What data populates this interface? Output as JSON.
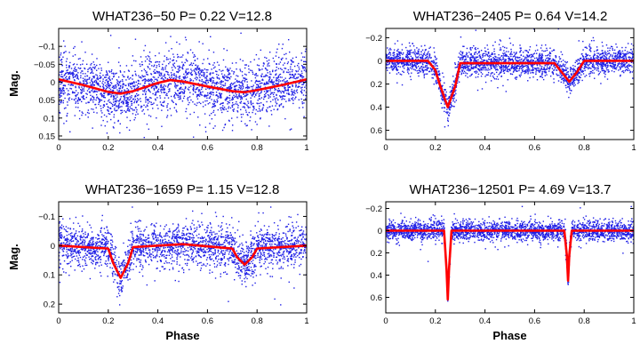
{
  "colors": {
    "points": "#1f1fe6",
    "model": "#ff0000",
    "axes": "#000000",
    "background": "#ffffff"
  },
  "chart_data": [
    {
      "type": "scatter",
      "title": "WHAT236−50     P= 0.22 V=12.8",
      "xlabel": "",
      "ylabel": "Mag.",
      "xlim": [
        0,
        1
      ],
      "ylim": [
        -0.15,
        0.16
      ],
      "y_inverted": true,
      "xticks": [
        0,
        0.2,
        0.4,
        0.6,
        0.8,
        1
      ],
      "xtick_labels": [
        "0",
        "0.2",
        "0.4",
        "0.6",
        "0.8",
        "1"
      ],
      "yticks": [
        -0.1,
        -0.05,
        0,
        0.05,
        0.1,
        0.15
      ],
      "ytick_labels": [
        "−0.1",
        "−0.05",
        "0",
        "0.05",
        "0.1",
        "0.15"
      ],
      "series": [
        {
          "kind": "points",
          "points_approx": 2500,
          "scatter_std": 0.04
        },
        {
          "kind": "model_line",
          "x": [
            0,
            0.1,
            0.2,
            0.25,
            0.3,
            0.4,
            0.45,
            0.5,
            0.6,
            0.7,
            0.75,
            0.8,
            0.9,
            1.0
          ],
          "y": [
            -0.008,
            0.008,
            0.027,
            0.032,
            0.025,
            0.002,
            -0.006,
            -0.002,
            0.012,
            0.025,
            0.028,
            0.022,
            0.008,
            -0.008
          ]
        }
      ]
    },
    {
      "type": "scatter",
      "title": "WHAT236−2405  P= 0.64 V=14.2",
      "xlabel": "",
      "ylabel": "",
      "xlim": [
        0,
        1
      ],
      "ylim": [
        -0.28,
        0.68
      ],
      "y_inverted": true,
      "xticks": [
        0,
        0.2,
        0.4,
        0.6,
        0.8,
        1
      ],
      "xtick_labels": [
        "0",
        "0.2",
        "0.4",
        "0.6",
        "0.8",
        "1"
      ],
      "yticks": [
        -0.2,
        0,
        0.2,
        0.4,
        0.6
      ],
      "ytick_labels": [
        "−0.2",
        "0",
        "0.2",
        "0.4",
        "0.6"
      ],
      "series": [
        {
          "kind": "points",
          "points_approx": 2500,
          "scatter_std": 0.06
        },
        {
          "kind": "model_line",
          "x": [
            0,
            0.17,
            0.2,
            0.22,
            0.25,
            0.28,
            0.3,
            0.55,
            0.68,
            0.71,
            0.74,
            0.77,
            0.8,
            1.0
          ],
          "y": [
            0,
            0,
            0.08,
            0.22,
            0.4,
            0.22,
            0.02,
            0.02,
            0.02,
            0.1,
            0.18,
            0.1,
            0,
            0
          ]
        }
      ]
    },
    {
      "type": "scatter",
      "title": "WHAT236−1659  P= 1.15 V=12.8",
      "xlabel": "Phase",
      "ylabel": "Mag.",
      "xlim": [
        0,
        1
      ],
      "ylim": [
        -0.15,
        0.23
      ],
      "y_inverted": true,
      "xticks": [
        0,
        0.2,
        0.4,
        0.6,
        0.8,
        1
      ],
      "xtick_labels": [
        "0",
        "0.2",
        "0.4",
        "0.6",
        "0.8",
        "1"
      ],
      "yticks": [
        -0.1,
        0,
        0.1,
        0.2
      ],
      "ytick_labels": [
        "−0.1",
        "0",
        "0.1",
        "0.2"
      ],
      "series": [
        {
          "kind": "points",
          "points_approx": 2500,
          "scatter_std": 0.035
        },
        {
          "kind": "model_line",
          "x": [
            0,
            0.2,
            0.22,
            0.25,
            0.28,
            0.3,
            0.5,
            0.7,
            0.72,
            0.75,
            0.78,
            0.8,
            1.0
          ],
          "y": [
            0,
            0.01,
            0.06,
            0.11,
            0.06,
            0.005,
            -0.005,
            0.01,
            0.04,
            0.065,
            0.04,
            0.01,
            0
          ]
        }
      ]
    },
    {
      "type": "scatter",
      "title": "WHAT236−12501 P= 4.69 V=13.7",
      "xlabel": "Phase",
      "ylabel": "",
      "xlim": [
        0,
        1
      ],
      "ylim": [
        -0.26,
        0.74
      ],
      "y_inverted": true,
      "xticks": [
        0,
        0.2,
        0.4,
        0.6,
        0.8,
        1
      ],
      "xtick_labels": [
        "0",
        "0.2",
        "0.4",
        "0.6",
        "0.8",
        "1"
      ],
      "yticks": [
        -0.2,
        0,
        0.2,
        0.4,
        0.6
      ],
      "ytick_labels": [
        "−0.2",
        "0",
        "0.2",
        "0.4",
        "0.6"
      ],
      "series": [
        {
          "kind": "points",
          "points_approx": 2500,
          "scatter_std": 0.045
        },
        {
          "kind": "model_line",
          "x": [
            0,
            0.235,
            0.245,
            0.25,
            0.255,
            0.265,
            0.72,
            0.73,
            0.735,
            0.74,
            0.75,
            1.0
          ],
          "y": [
            0,
            0,
            0.35,
            0.62,
            0.35,
            0,
            0,
            0.22,
            0.45,
            0.22,
            0,
            0
          ]
        }
      ]
    }
  ]
}
